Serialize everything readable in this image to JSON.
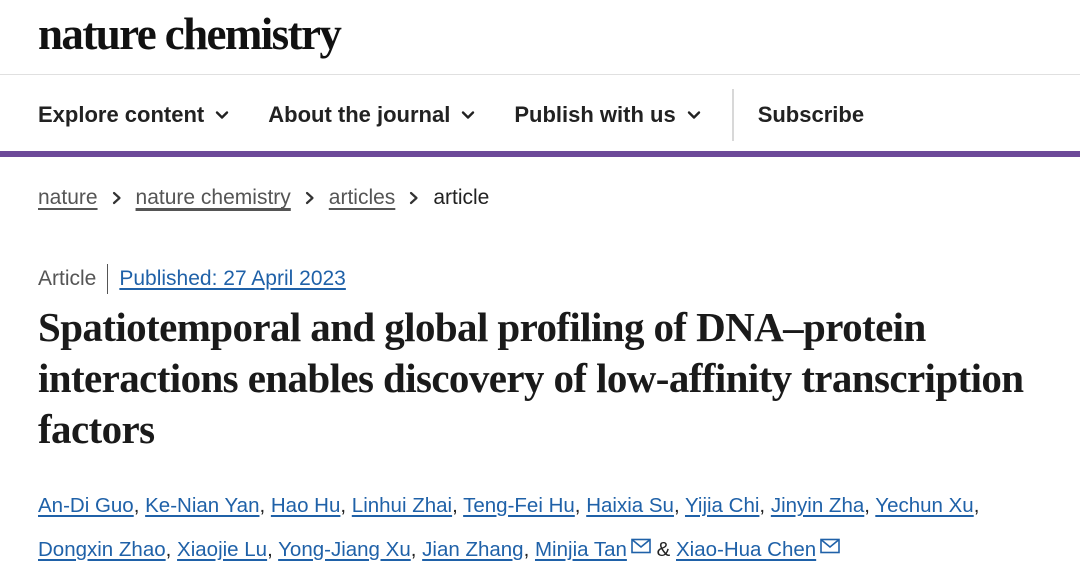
{
  "header": {
    "logo": "nature chemistry"
  },
  "nav": {
    "items": [
      {
        "label": "Explore content",
        "icon": "chevron-down-icon"
      },
      {
        "label": "About the journal",
        "icon": "chevron-down-icon"
      },
      {
        "label": "Publish with us",
        "icon": "chevron-down-icon"
      }
    ],
    "subscribe": "Subscribe"
  },
  "colors": {
    "accent_bar": "#6d4a99",
    "link": "#1f61a8"
  },
  "breadcrumb": {
    "items": [
      "nature",
      "nature chemistry",
      "articles"
    ],
    "current": "article"
  },
  "article": {
    "type": "Article",
    "published": "Published: 27 April 2023",
    "title": "Spatiotemporal and global profiling of DNA–protein interactions enables discovery of low-affinity transcription factors",
    "authors": [
      "An-Di Guo",
      "Ke-Nian Yan",
      "Hao Hu",
      "Linhui Zhai",
      "Teng-Fei Hu",
      "Haixia Su",
      "Yijia Chi",
      "Jinyin Zha",
      "Yechun Xu",
      "Dongxin Zhao",
      "Xiaojie Lu",
      "Yong-Jiang Xu",
      "Jian Zhang",
      "Minjia Tan",
      "Xiao-Hua Chen"
    ],
    "author_separator": ", ",
    "and_text": "&",
    "corresponding_icon": "envelope-icon"
  }
}
